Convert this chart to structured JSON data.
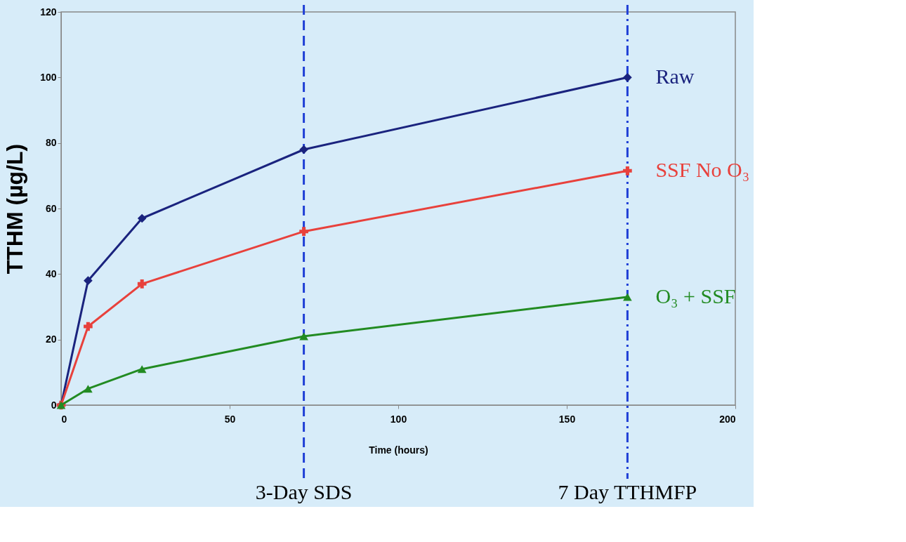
{
  "chart_data": {
    "type": "line",
    "xlabel": "Time (hours)",
    "ylabel": "TTHM  (µg/L)",
    "xlim": [
      0,
      200
    ],
    "xticks": [
      0,
      50,
      100,
      150,
      200
    ],
    "ylim": [
      0,
      120
    ],
    "yticks": [
      0,
      20,
      40,
      60,
      80,
      100,
      120
    ],
    "grid": false,
    "x": [
      0,
      8,
      24,
      72,
      168
    ],
    "series": [
      {
        "name": "Raw",
        "color": "#1a237e",
        "marker": "diamond",
        "values": [
          0,
          38,
          57,
          78,
          100
        ]
      },
      {
        "name": "SSF No O₃",
        "color": "#e8413c",
        "marker": "cross",
        "values": [
          0,
          24,
          37,
          53,
          71.5
        ]
      },
      {
        "name": "O₃ + SSF",
        "color": "#228b22",
        "marker": "triangle",
        "values": [
          0,
          5,
          11,
          21,
          33
        ]
      }
    ],
    "ref_lines": [
      {
        "axis": "x",
        "value": 72,
        "label": "3-Day SDS",
        "color": "#1f3fd6",
        "line_style": "dashed"
      },
      {
        "axis": "x",
        "value": 168,
        "label": "7 Day TTHMFP",
        "color": "#1f3fd6",
        "line_style": "dashdot"
      }
    ]
  }
}
